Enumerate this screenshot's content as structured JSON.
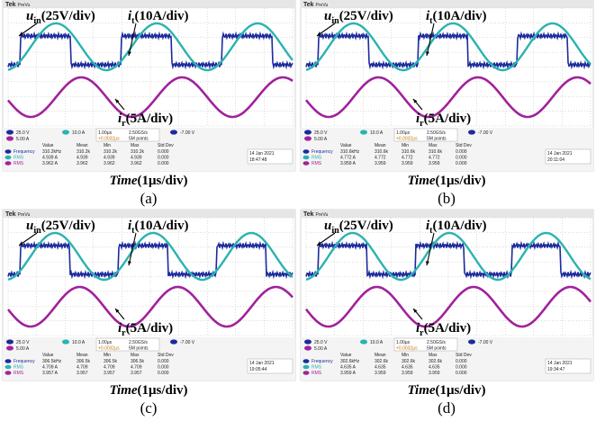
{
  "panels": [
    {
      "brand": "Tek",
      "mode": "PreVu",
      "u_label": [
        "u",
        "in",
        "(25V/div)"
      ],
      "it_label": [
        "i",
        "t",
        "(10A/div)"
      ],
      "ir_label": [
        "i",
        "r",
        "(5A/div)"
      ],
      "ch1": "25.0 V",
      "ch2": "10.0 A",
      "ch3": "5.00 A",
      "timebase": "1.00μs",
      "sample": "2.50GS/s",
      "points": "5M points",
      "trigger": "-7.00 V",
      "offset": "+0.0032μs",
      "table": {
        "header": [
          "Value",
          "Mean",
          "Min",
          "Max",
          "Std Dev"
        ],
        "rows": [
          [
            "Frequency",
            "310.2kHz",
            "310.2k",
            "310.2k",
            "310.2k",
            "0.000"
          ],
          [
            "RMS",
            "4.939 A",
            "4.939",
            "4.939",
            "4.939",
            "0.000"
          ],
          [
            "RMS",
            "3.962 A",
            "3.962",
            "3.962",
            "3.962",
            "0.000"
          ]
        ]
      },
      "date": "14 Jan  2021",
      "time": "18:47:48",
      "axis": [
        "Time",
        "(1μs/div)"
      ],
      "caption": "(a)"
    },
    {
      "brand": "Tek",
      "mode": "PreVu",
      "u_label": [
        "u",
        "in",
        "(25V/div)"
      ],
      "it_label": [
        "i",
        "t",
        "(10A/div)"
      ],
      "ir_label": [
        "i",
        "r",
        "(5A/div)"
      ],
      "ch1": "25.0 V",
      "ch2": "10.0 A",
      "ch3": "5.00 A",
      "timebase": "1.00μs",
      "sample": "2.50GS/s",
      "points": "5M points",
      "trigger": "-7.00 V",
      "offset": "+0.0032μs",
      "table": {
        "header": [
          "Value",
          "Mean",
          "Min",
          "Max",
          "Std Dev"
        ],
        "rows": [
          [
            "Frequency",
            "310.6kHz",
            "310.6k",
            "310.6k",
            "310.6k",
            "0.000"
          ],
          [
            "RMS",
            "4.772 A",
            "4.772",
            "4.772",
            "4.772",
            "0.000"
          ],
          [
            "RMS",
            "3.959 A",
            "3.959",
            "3.959",
            "3.959",
            "0.000"
          ]
        ]
      },
      "date": "14 Jan  2021",
      "time": "20:11:04",
      "axis": [
        "Time",
        "(1μs/div)"
      ],
      "caption": "(b)"
    },
    {
      "brand": "Tek",
      "mode": "PreVu",
      "u_label": [
        "u",
        "in",
        "(25V/div)"
      ],
      "it_label": [
        "i",
        "t",
        "(10A/div)"
      ],
      "ir_label": [
        "i",
        "r",
        "(5A/div)"
      ],
      "ch1": "25.0 V",
      "ch2": "10.0 A",
      "ch3": "5.00 A",
      "timebase": "1.00μs",
      "sample": "2.50GS/s",
      "points": "5M points",
      "trigger": "-7.00 V",
      "offset": "+0.0032μs",
      "table": {
        "header": [
          "Value",
          "Mean",
          "Min",
          "Max",
          "Std Dev"
        ],
        "rows": [
          [
            "Frequency",
            "306.5kHz",
            "306.5k",
            "306.5k",
            "306.5k",
            "0.000"
          ],
          [
            "RMS",
            "4.709 A",
            "4.709",
            "4.709",
            "4.709",
            "0.000"
          ],
          [
            "RMS",
            "3.957 A",
            "3.957",
            "3.957",
            "3.957",
            "0.000"
          ]
        ]
      },
      "date": "14 Jan  2021",
      "time": "19:05:44",
      "axis": [
        "Time",
        "(1μs/div)"
      ],
      "caption": "(c)"
    },
    {
      "brand": "Tek",
      "mode": "PreVu",
      "u_label": [
        "u",
        "in",
        "(25V/div)"
      ],
      "it_label": [
        "i",
        "t",
        "(10A/div)"
      ],
      "ir_label": [
        "i",
        "r",
        "(5A/div)"
      ],
      "ch1": "25.0 V",
      "ch2": "10.0 A",
      "ch3": "5.00 A",
      "timebase": "1.00μs",
      "sample": "2.50GS/s",
      "points": "5M points",
      "trigger": "-7.00 V",
      "offset": "+0.0032μs",
      "table": {
        "header": [
          "Value",
          "Mean",
          "Min",
          "Max",
          "Std Dev"
        ],
        "rows": [
          [
            "Frequency",
            "302.6kHz",
            "302.6k",
            "302.6k",
            "302.6k",
            "0.000"
          ],
          [
            "RMS",
            "4.635 A",
            "4.635",
            "4.635",
            "4.635",
            "0.000"
          ],
          [
            "RMS",
            "3.959 A",
            "3.959",
            "3.959",
            "3.959",
            "0.000"
          ]
        ]
      },
      "date": "14 Jan  2021",
      "time": "19:34:47",
      "axis": [
        "Time",
        "(1μs/div)"
      ],
      "caption": "(d)"
    }
  ]
}
